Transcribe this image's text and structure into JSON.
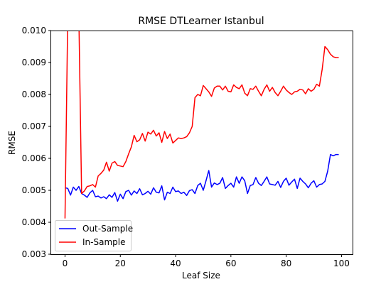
{
  "chart_data": {
    "type": "line",
    "title": "RMSE DTLearner Istanbul",
    "xlabel": "Leaf Size",
    "ylabel": "RMSE",
    "xlim": [
      -5,
      104
    ],
    "ylim": [
      0.003,
      0.01
    ],
    "xticks": [
      0,
      20,
      40,
      60,
      80,
      100
    ],
    "xtick_labels": [
      "0",
      "20",
      "40",
      "60",
      "80",
      "100"
    ],
    "yticks": [
      0.003,
      0.004,
      0.005,
      0.006,
      0.007,
      0.008,
      0.009,
      0.01
    ],
    "ytick_labels": [
      "0.003",
      "0.004",
      "0.005",
      "0.006",
      "0.007",
      "0.008",
      "0.009",
      "0.010"
    ],
    "legend_position": "lower-left",
    "grid": false,
    "x": [
      0,
      1,
      2,
      3,
      4,
      5,
      6,
      7,
      8,
      9,
      10,
      11,
      12,
      13,
      14,
      15,
      16,
      17,
      18,
      19,
      20,
      21,
      22,
      23,
      24,
      25,
      26,
      27,
      28,
      29,
      30,
      31,
      32,
      33,
      34,
      35,
      36,
      37,
      38,
      39,
      40,
      41,
      42,
      43,
      44,
      45,
      46,
      47,
      48,
      49,
      50,
      51,
      52,
      53,
      54,
      55,
      56,
      57,
      58,
      59,
      60,
      61,
      62,
      63,
      64,
      65,
      66,
      67,
      68,
      69,
      70,
      71,
      72,
      73,
      74,
      75,
      76,
      77,
      78,
      79,
      80,
      81,
      82,
      83,
      84,
      85,
      86,
      87,
      88,
      89,
      90,
      91,
      92,
      93,
      94,
      95,
      96,
      97,
      98,
      99
    ],
    "series": [
      {
        "name": "Out-Sample",
        "color": "#0000ff",
        "values": [
          0.00508,
          0.00506,
          0.00485,
          0.0051,
          0.005,
          0.00512,
          0.0049,
          0.00485,
          0.00478,
          0.00492,
          0.005,
          0.0048,
          0.00482,
          0.00476,
          0.0048,
          0.00474,
          0.00486,
          0.00478,
          0.00493,
          0.00466,
          0.00488,
          0.00474,
          0.00496,
          0.005,
          0.00485,
          0.00498,
          0.0049,
          0.00505,
          0.00486,
          0.0049,
          0.00497,
          0.00488,
          0.00508,
          0.00494,
          0.00492,
          0.00514,
          0.0047,
          0.00494,
          0.0049,
          0.0051,
          0.00496,
          0.00498,
          0.0049,
          0.00494,
          0.00484,
          0.00499,
          0.00502,
          0.0049,
          0.00515,
          0.00522,
          0.005,
          0.0053,
          0.00562,
          0.0051,
          0.00523,
          0.00518,
          0.00522,
          0.0054,
          0.00506,
          0.00515,
          0.00522,
          0.0051,
          0.00542,
          0.00522,
          0.00542,
          0.0053,
          0.0049,
          0.00515,
          0.00518,
          0.0054,
          0.00522,
          0.00515,
          0.00528,
          0.00542,
          0.0052,
          0.00518,
          0.00516,
          0.00528,
          0.00509,
          0.00528,
          0.00538,
          0.00516,
          0.00526,
          0.00535,
          0.00506,
          0.00538,
          0.00528,
          0.0052,
          0.00508,
          0.00522,
          0.0053,
          0.0051,
          0.00518,
          0.0052,
          0.00528,
          0.0056,
          0.00612,
          0.00608,
          0.00612,
          0.00612
        ]
      },
      {
        "name": "In-Sample",
        "color": "#ff0000",
        "values": [
          0.00412,
          0.0105,
          0.0105,
          0.0105,
          0.0105,
          0.0105,
          0.0049,
          0.00498,
          0.00512,
          0.00514,
          0.00518,
          0.0051,
          0.00545,
          0.00553,
          0.00563,
          0.00588,
          0.0056,
          0.00585,
          0.0059,
          0.00578,
          0.00576,
          0.00574,
          0.0059,
          0.00614,
          0.00636,
          0.00672,
          0.00652,
          0.00658,
          0.00678,
          0.00654,
          0.00682,
          0.00676,
          0.00688,
          0.0067,
          0.0068,
          0.0065,
          0.00684,
          0.00662,
          0.00676,
          0.00648,
          0.00656,
          0.00664,
          0.00662,
          0.00664,
          0.00668,
          0.0068,
          0.007,
          0.0079,
          0.008,
          0.00796,
          0.00828,
          0.00818,
          0.00808,
          0.00794,
          0.0082,
          0.00826,
          0.00826,
          0.00814,
          0.00826,
          0.0081,
          0.00808,
          0.0083,
          0.00822,
          0.00818,
          0.0083,
          0.00804,
          0.00796,
          0.00818,
          0.00816,
          0.00826,
          0.0081,
          0.00796,
          0.00816,
          0.0083,
          0.0081,
          0.00822,
          0.00806,
          0.00796,
          0.0081,
          0.00826,
          0.00814,
          0.00806,
          0.008,
          0.00808,
          0.0081,
          0.00816,
          0.00814,
          0.00802,
          0.00818,
          0.0081,
          0.00816,
          0.00832,
          0.00826,
          0.00878,
          0.0095,
          0.0094,
          0.00926,
          0.00918,
          0.00915,
          0.00915
        ]
      }
    ]
  }
}
